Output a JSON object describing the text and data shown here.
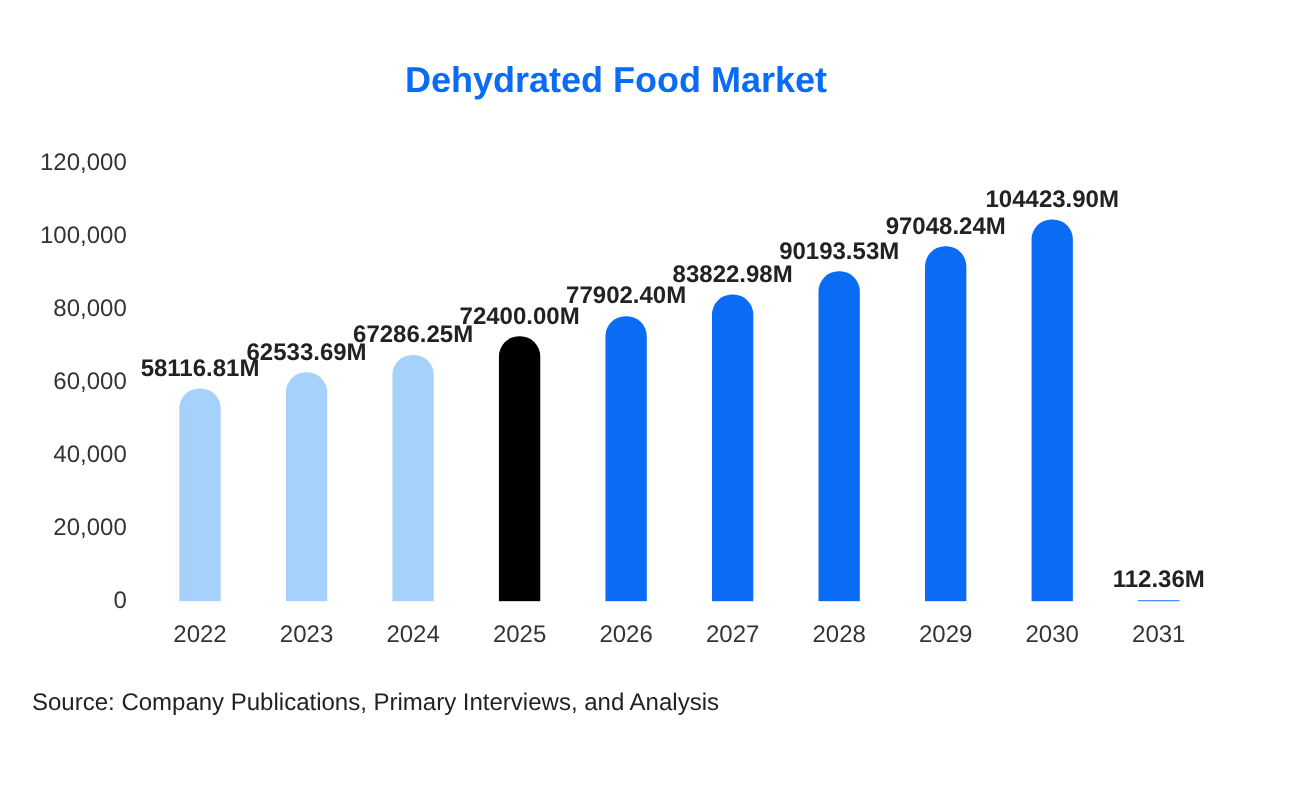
{
  "chart_data": {
    "type": "bar",
    "title": "Dehydrated Food Market",
    "categories": [
      "2022",
      "2023",
      "2024",
      "2025",
      "2026",
      "2027",
      "2028",
      "2029",
      "2030",
      "2031"
    ],
    "values": [
      58116.81,
      62533.69,
      67286.25,
      72400.0,
      77902.4,
      83822.98,
      90193.53,
      97048.24,
      104423.9,
      112.36
    ],
    "colors": [
      "#a6d1fb",
      "#a6d1fb",
      "#a6d1fb",
      "#000000",
      "#0a6cf5",
      "#0a6cf5",
      "#0a6cf5",
      "#0a6cf5",
      "#0a6cf5",
      "#0a6cf5"
    ],
    "value_labels": [
      "58116.81M",
      "62533.69M",
      "67286.25M",
      "72400.00M",
      "77902.40M",
      "83822.98M",
      "90193.53M",
      "97048.24M",
      "104423.90M",
      "112.36M"
    ],
    "ylim": [
      0,
      120000
    ],
    "yticks": [
      {
        "value": 0,
        "label": "0"
      },
      {
        "value": 20000,
        "label": "20,000"
      },
      {
        "value": 40000,
        "label": "40,000"
      },
      {
        "value": 60000,
        "label": "60,000"
      },
      {
        "value": 80000,
        "label": "80,000"
      },
      {
        "value": 100000,
        "label": "100,000"
      },
      {
        "value": 120000,
        "label": "120,000"
      }
    ],
    "grid": false,
    "annotations": [
      "Source: Company Publications, Primary Interviews, and Analysis"
    ]
  }
}
